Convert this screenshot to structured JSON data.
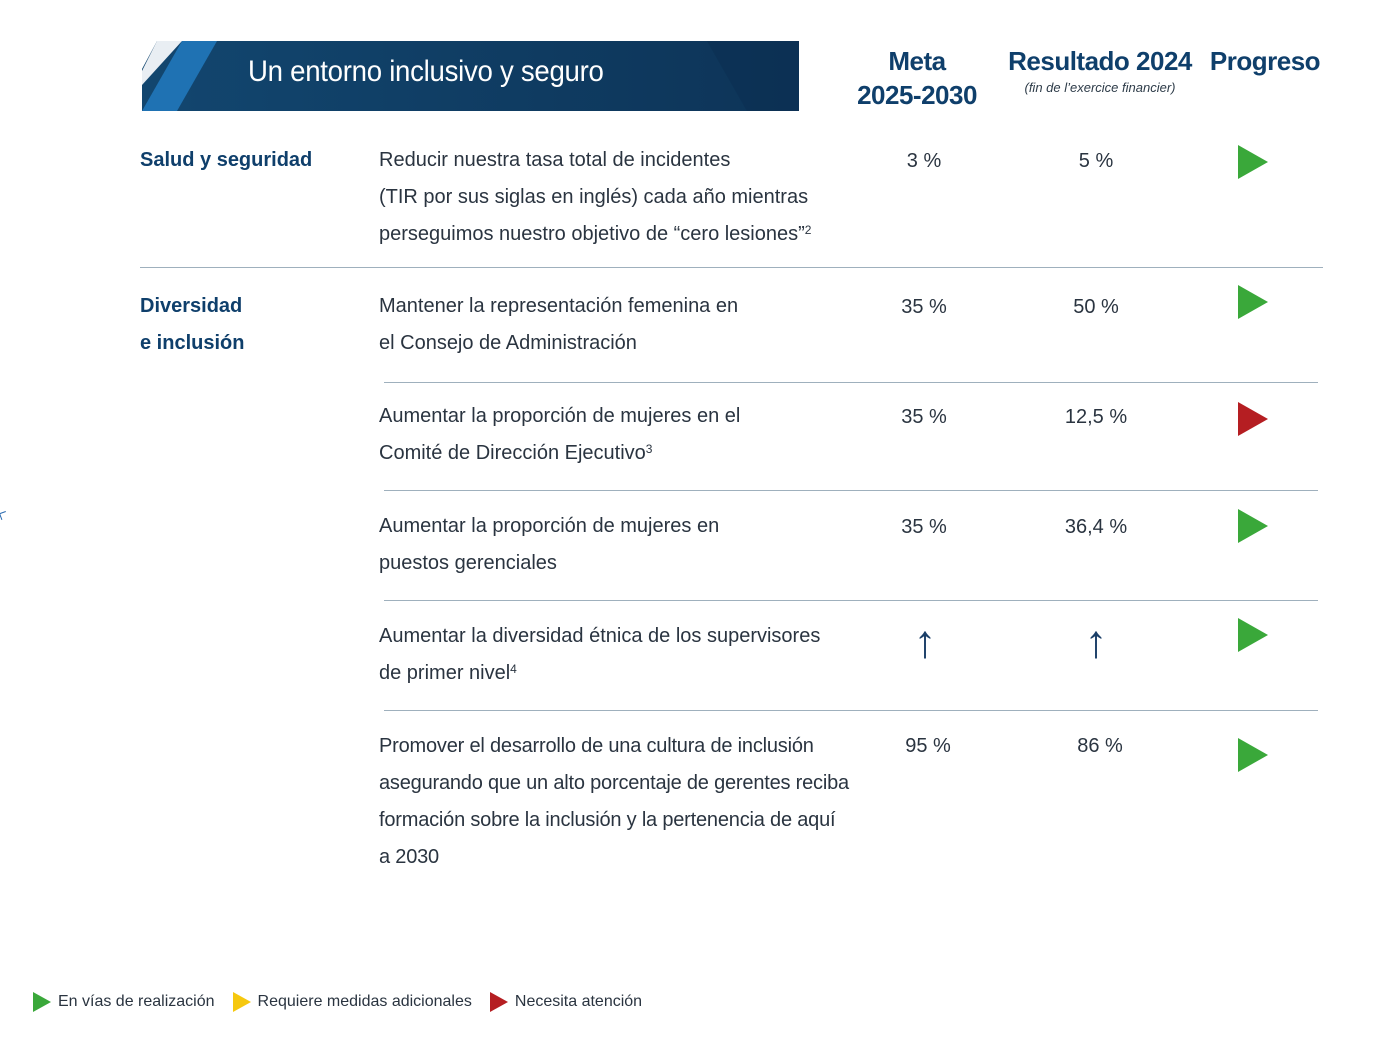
{
  "banner": {
    "title": "Un entorno inclusivo y seguro"
  },
  "columns": {
    "goal": "Meta\n2025-2030",
    "goal_line1": "Meta",
    "goal_line2": "2025-2030",
    "result": "Resultado 2024",
    "result_note": "(fin de l’exercice financier)",
    "progress": "Progreso"
  },
  "rows": [
    {
      "category": "Salud y seguridad",
      "lines": [
        "Reducir nuestra tasa total de incidentes",
        "(TIR por sus siglas en inglés) cada año mientras",
        "perseguimos nuestro objetivo de “cero lesiones”"
      ],
      "footnote": "2",
      "goal": "3 %",
      "result": "5 %",
      "status": "green"
    },
    {
      "category_lines": [
        "Diversidad",
        "e inclusión"
      ],
      "lines": [
        "Mantener la representación femenina en",
        "el Consejo de Administración"
      ],
      "goal": "35 %",
      "result": "50 %",
      "status": "green"
    },
    {
      "lines": [
        "Aumentar la proporción de mujeres en el",
        "Comité de Dirección Ejecutivo"
      ],
      "footnote": "3",
      "goal": "35 %",
      "result": "12,5 %",
      "status": "red"
    },
    {
      "lines": [
        "Aumentar la proporción de mujeres en",
        "puestos gerenciales"
      ],
      "goal": "35 %",
      "result": "36,4 %",
      "status": "green"
    },
    {
      "lines": [
        "Aumentar la diversidad étnica de los supervisores",
        "de primer nivel"
      ],
      "footnote": "4",
      "goal_icon": "up-arrow-icon",
      "result_icon": "up-arrow-icon",
      "goal_glyph": "↑",
      "result_glyph": "↑",
      "status": "green"
    },
    {
      "lines": [
        "Promover el desarrollo de una cultura de inclusión",
        "asegurando que un alto porcentaje de gerentes reciba",
        "formación sobre la inclusión y la pertenencia de aquí",
        "a 2030"
      ],
      "goal": "95 %",
      "result": "86 %",
      "status": "green"
    }
  ],
  "legend": [
    {
      "label": "En vías de realización",
      "color": "#3aa83a"
    },
    {
      "label": "Requiere medidas adicionales",
      "color": "#f6c80f"
    },
    {
      "label": "Necesita atención",
      "color": "#b51e22"
    }
  ],
  "colors": {
    "banner_dark": "#0e3a63",
    "banner_light": "#1d6fb0",
    "heading": "#0f3f6b",
    "green": "#3aa83a",
    "red": "#b51e22",
    "yellow": "#f6c80f"
  }
}
